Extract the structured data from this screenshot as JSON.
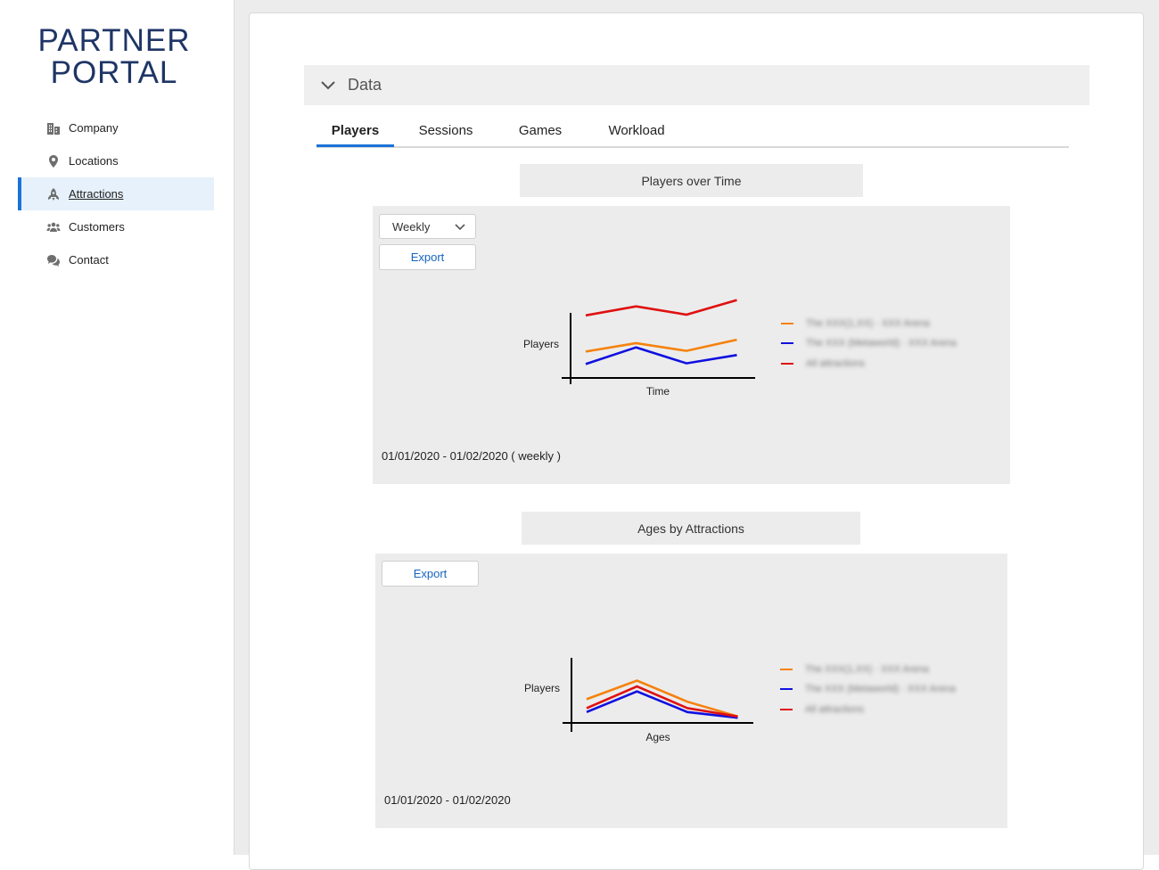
{
  "app": {
    "logo_line1": "PARTNER",
    "logo_line2": "PORTAL"
  },
  "sidebar": {
    "items": [
      {
        "label": "Company",
        "icon": "building-icon"
      },
      {
        "label": "Locations",
        "icon": "map-pin-icon"
      },
      {
        "label": "Attractions",
        "icon": "rocket-icon",
        "active": true
      },
      {
        "label": "Customers",
        "icon": "group-icon"
      },
      {
        "label": "Contact",
        "icon": "chat-icon"
      }
    ]
  },
  "section": {
    "title": "Data",
    "tabs": [
      {
        "label": "Players",
        "active": true
      },
      {
        "label": "Sessions"
      },
      {
        "label": "Games"
      },
      {
        "label": "Workload"
      }
    ]
  },
  "charts": {
    "players_over_time": {
      "title": "Players over Time",
      "period_select": "Weekly",
      "export_label": "Export",
      "ylabel": "Players",
      "xlabel": "Time",
      "range_text": "01/01/2020 - 01/02/2020 ( weekly )"
    },
    "ages_by_attractions": {
      "title": "Ages by Attractions",
      "export_label": "Export",
      "ylabel": "Players",
      "xlabel": "Ages",
      "range_text": "01/01/2020 - 01/02/2020"
    }
  },
  "colors": {
    "accent": "#1b72d8",
    "brand": "#1f3566",
    "series_orange": "#f5820d",
    "series_blue": "#1010e0",
    "series_red": "#e01010"
  },
  "chart_data": [
    {
      "type": "line",
      "title": "Players over Time",
      "xlabel": "Time",
      "ylabel": "Players",
      "x": [
        1,
        2,
        3,
        4
      ],
      "series": [
        {
          "name": "The XXX(1,XX) · XXX Arena",
          "color": "#f5820d",
          "values": [
            3.8,
            5.0,
            3.9,
            5.5
          ]
        },
        {
          "name": "The XXX (Metaworld) · XXX Arena",
          "color": "#1010e0",
          "values": [
            2.0,
            4.4,
            2.1,
            3.3
          ]
        },
        {
          "name": "All attractions",
          "color": "#e01010",
          "values": [
            9.0,
            10.3,
            9.1,
            11.2
          ]
        }
      ],
      "grid": false,
      "legend": "right"
    },
    {
      "type": "line",
      "title": "Ages by Attractions",
      "xlabel": "Ages",
      "ylabel": "Players",
      "x": [
        1,
        2,
        3,
        4
      ],
      "series": [
        {
          "name": "The XXX(1,XX) · XXX Arena",
          "color": "#f5820d",
          "values": [
            3.7,
            6.6,
            3.3,
            1.0
          ]
        },
        {
          "name": "The XXX (Metaworld) · XXX Arena",
          "color": "#1010e0",
          "values": [
            1.7,
            4.9,
            1.7,
            0.8
          ]
        },
        {
          "name": "All attractions",
          "color": "#e01010",
          "values": [
            2.3,
            5.7,
            2.3,
            1.0
          ]
        }
      ],
      "grid": false,
      "legend": "right"
    }
  ]
}
